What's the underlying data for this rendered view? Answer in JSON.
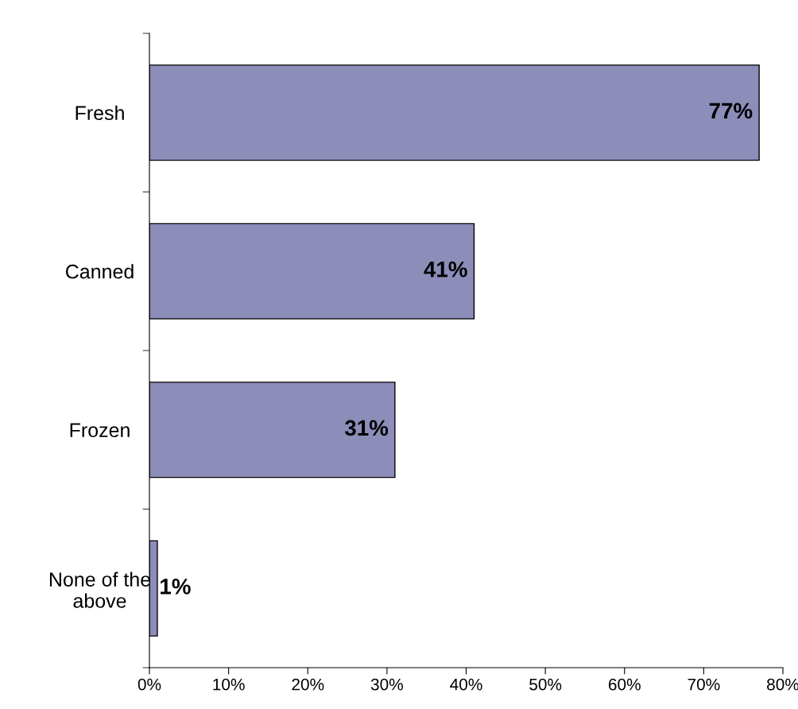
{
  "chart_data": {
    "type": "bar",
    "orientation": "horizontal",
    "categories": [
      "Fresh",
      "Canned",
      "Frozen",
      "None of the\nabove"
    ],
    "values": [
      77,
      41,
      31,
      1
    ],
    "value_labels": [
      "77%",
      "41%",
      "31%",
      "1%"
    ],
    "color": "#8c8db9",
    "xlim": [
      0,
      80
    ],
    "xticks": [
      {
        "value": 0,
        "label": "0%"
      },
      {
        "value": 10,
        "label": "10%"
      },
      {
        "value": 20,
        "label": "20%"
      },
      {
        "value": 30,
        "label": "30%"
      },
      {
        "value": 40,
        "label": "40%"
      },
      {
        "value": 50,
        "label": "50%"
      },
      {
        "value": 60,
        "label": "60%"
      },
      {
        "value": 70,
        "label": "70%"
      },
      {
        "value": 80,
        "label": "80%"
      }
    ],
    "grid": false,
    "legend": false
  }
}
